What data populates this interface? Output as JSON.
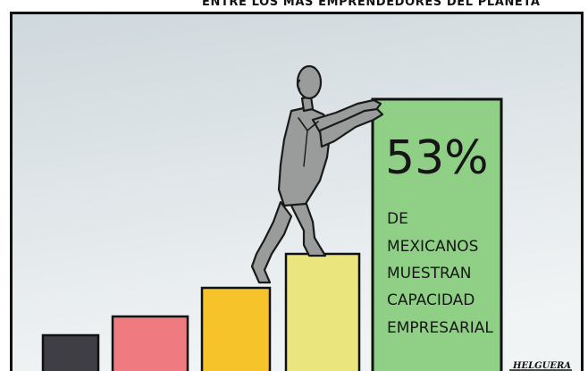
{
  "cartoon": {
    "caption": "ENTRE LOS MÁS EMPRENDEDORES DEL PLANETA",
    "sign": {
      "big_number": "53%",
      "lines": [
        "DE",
        "MEXICANOS",
        "MUESTRAN",
        "CAPACIDAD",
        "EMPRESARIAL"
      ]
    },
    "signature": "HELGUERA"
  },
  "colors": {
    "sky_top": "#cfd8dd",
    "sky_bottom": "#f1f4f5",
    "sign_green": "#8fcf86",
    "step_dark": "#3e3e44",
    "step_red": "#ef7a80",
    "step_orange": "#f7c32b",
    "step_yellow": "#ebe57d",
    "figure_gray": "#9a9c9c"
  },
  "icons": {
    "figure": "climbing-man-figure"
  }
}
